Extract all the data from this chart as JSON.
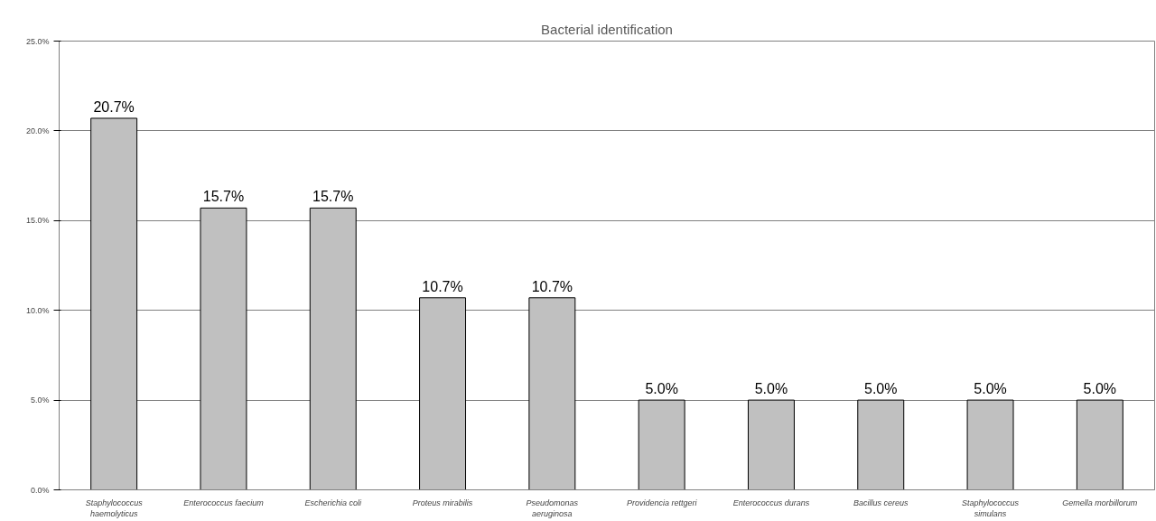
{
  "chart_data": {
    "type": "bar",
    "title": "Bacterial identification",
    "categories": [
      "Staphylococcus haemolyticus",
      "Enterococcus faecium",
      "Escherichia coli",
      "Proteus mirabilis",
      "Pseudomonas aeruginosa",
      "Providencia rettgeri",
      "Enterococcus durans",
      "Bacillus cereus",
      "Staphylococcus simulans",
      "Gemella morbillorum"
    ],
    "values": [
      20.7,
      15.7,
      15.7,
      10.7,
      10.7,
      5.0,
      5.0,
      5.0,
      5.0,
      5.0
    ],
    "value_labels": [
      "20.7%",
      "15.7%",
      "15.7%",
      "10.7%",
      "10.7%",
      "5.0%",
      "5.0%",
      "5.0%",
      "5.0%",
      "5.0%"
    ],
    "color": "#c0c0c0",
    "ylim": [
      0,
      25
    ],
    "yticks": [
      {
        "value": 0,
        "label": "0.0%"
      },
      {
        "value": 5,
        "label": "5.0%"
      },
      {
        "value": 10,
        "label": "10.0%"
      },
      {
        "value": 15,
        "label": "15.0%"
      },
      {
        "value": 20,
        "label": "20.0%"
      },
      {
        "value": 25,
        "label": "25.0%"
      }
    ],
    "grid": "y"
  }
}
